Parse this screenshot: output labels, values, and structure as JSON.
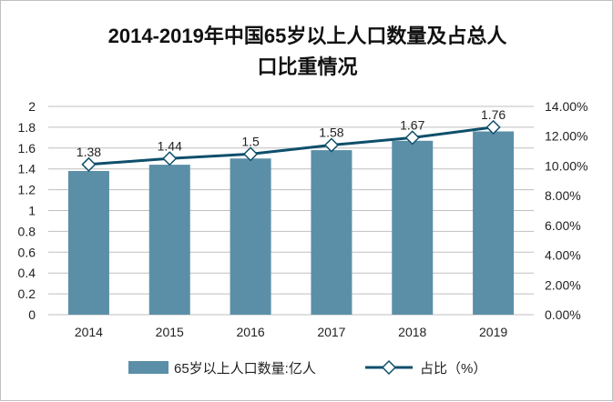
{
  "chart_data": {
    "type": "bar",
    "title_line1": "2014-2019年中国65岁以上人口数量及占总人",
    "title_line2": "口比重情况",
    "categories": [
      "2014",
      "2015",
      "2016",
      "2017",
      "2018",
      "2019"
    ],
    "series": [
      {
        "name": "65岁以上人口数量:亿人",
        "type": "bar",
        "axis": "left",
        "values": [
          1.38,
          1.44,
          1.5,
          1.58,
          1.67,
          1.76
        ],
        "labels": [
          "1.38",
          "1.44",
          "1.5",
          "1.58",
          "1.67",
          "1.76"
        ],
        "color": "#5b8fa8"
      },
      {
        "name": "占比（%）",
        "type": "line",
        "axis": "right",
        "values": [
          10.1,
          10.5,
          10.8,
          11.4,
          11.9,
          12.6
        ],
        "color": "#0e4f6b"
      }
    ],
    "left_axis": {
      "ylim": [
        0,
        2
      ],
      "ticks": [
        "0",
        "0.2",
        "0.4",
        "0.6",
        "0.8",
        "1",
        "1.2",
        "1.4",
        "1.6",
        "1.8",
        "2"
      ]
    },
    "right_axis": {
      "ylim": [
        0,
        14
      ],
      "ticks": [
        "0.00%",
        "2.00%",
        "4.00%",
        "6.00%",
        "8.00%",
        "10.00%",
        "12.00%",
        "14.00%"
      ]
    },
    "grid": true,
    "legend": "bottom"
  }
}
